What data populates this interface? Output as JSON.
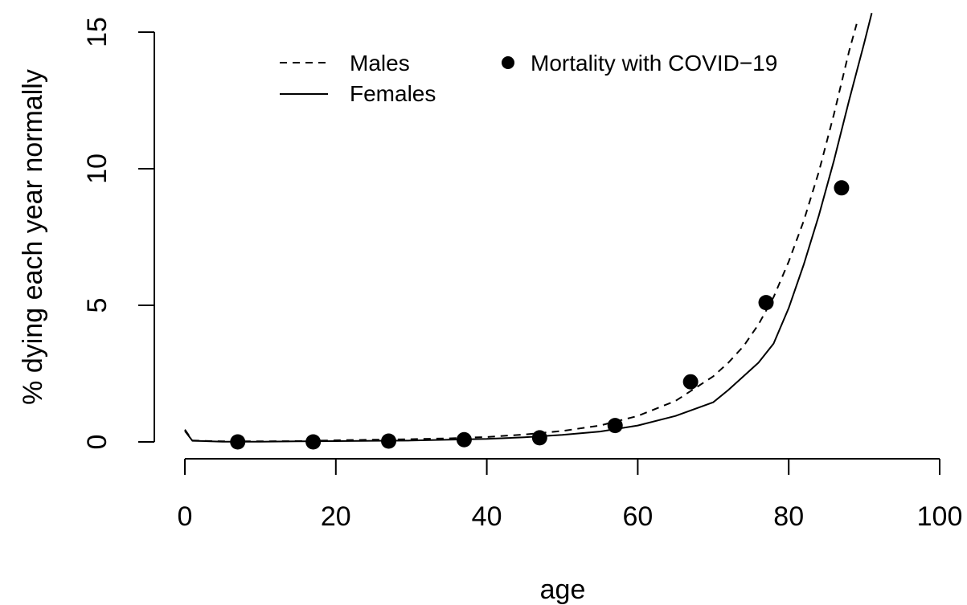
{
  "chart_data": {
    "type": "line",
    "title": "",
    "xlabel": "age",
    "ylabel": "% dying each year normally",
    "xlim": [
      0,
      100
    ],
    "ylim": [
      0,
      15
    ],
    "x_ticks": [
      0,
      20,
      40,
      60,
      80,
      100
    ],
    "x_tick_labels": [
      "0",
      "20",
      "40",
      "60",
      "80",
      "100"
    ],
    "y_ticks": [
      0,
      5,
      10,
      15
    ],
    "y_tick_labels": [
      "0",
      "5",
      "10",
      "15"
    ],
    "grid": false,
    "legend_position": "top",
    "series": [
      {
        "name": "Males",
        "style": "dashed",
        "x": [
          0,
          1,
          5,
          10,
          15,
          20,
          25,
          30,
          35,
          40,
          45,
          50,
          55,
          60,
          65,
          70,
          72,
          74,
          76,
          78,
          80,
          82,
          84,
          86,
          88,
          89
        ],
        "y": [
          0.45,
          0.05,
          0.02,
          0.02,
          0.03,
          0.06,
          0.08,
          0.1,
          0.13,
          0.18,
          0.27,
          0.4,
          0.6,
          0.95,
          1.5,
          2.4,
          2.9,
          3.5,
          4.3,
          5.3,
          6.6,
          8.1,
          9.9,
          12.0,
          14.3,
          15.3
        ]
      },
      {
        "name": "Females",
        "style": "solid",
        "x": [
          0,
          1,
          5,
          10,
          15,
          20,
          25,
          30,
          35,
          40,
          45,
          50,
          55,
          60,
          65,
          70,
          72,
          74,
          76,
          78,
          80,
          82,
          84,
          86,
          88,
          90,
          91
        ],
        "y": [
          0.4,
          0.04,
          0.01,
          0.01,
          0.02,
          0.03,
          0.04,
          0.05,
          0.08,
          0.11,
          0.17,
          0.26,
          0.38,
          0.6,
          0.95,
          1.45,
          1.9,
          2.4,
          2.9,
          3.6,
          4.9,
          6.5,
          8.3,
          10.3,
          12.5,
          14.6,
          15.7
        ]
      },
      {
        "name": "Mortality with COVID−19",
        "style": "points",
        "x": [
          7,
          17,
          27,
          37,
          47,
          57,
          67,
          77,
          87
        ],
        "y": [
          0.0,
          0.0,
          0.03,
          0.08,
          0.15,
          0.6,
          2.2,
          5.1,
          9.3
        ]
      }
    ]
  }
}
